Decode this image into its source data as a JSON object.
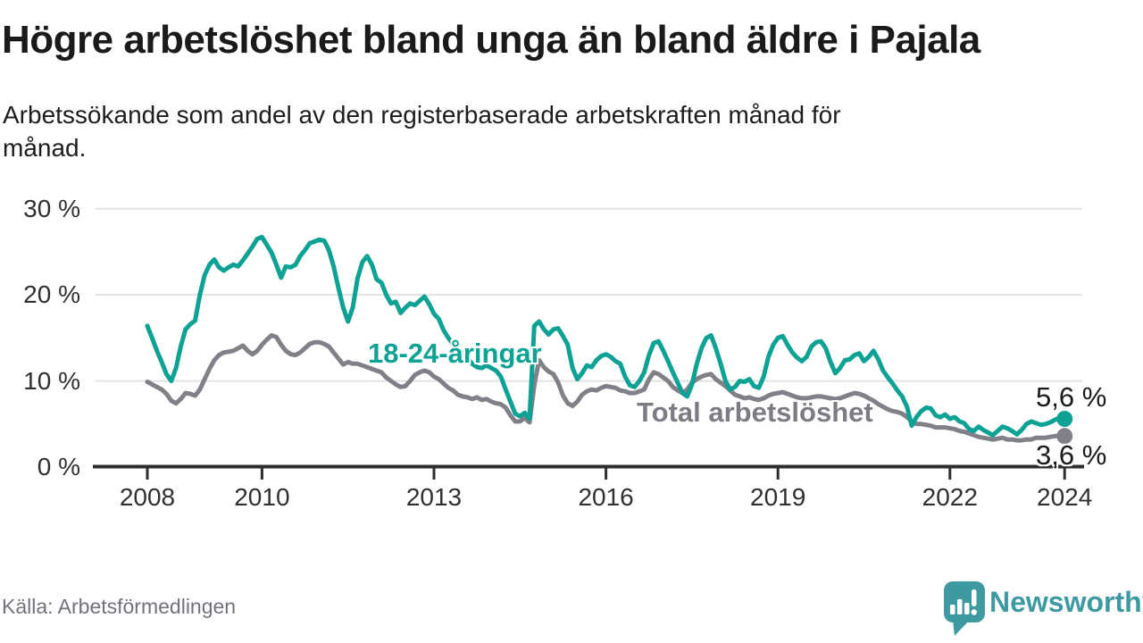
{
  "header": {
    "title": "Högre arbetslöshet bland unga än bland äldre i Pajala",
    "subtitle_line1": "Arbetssökande som andel av den registerbaserade arbetskraften månad för",
    "subtitle_line2": "månad."
  },
  "footer": {
    "source": "Källa: Arbetsförmedlingen",
    "brand": "Newsworthy",
    "brand_color": "#3e9aa0"
  },
  "chart_data": {
    "type": "line",
    "title": "Högre arbetslöshet bland unga än bland äldre i Pajala",
    "unit": "%",
    "frequency": "monthly",
    "x_start_year": 2008,
    "x_end_year": 2024,
    "ylim": [
      0,
      30
    ],
    "grid": true,
    "legend": "inline-labels",
    "y_axis": {
      "ticks": [
        {
          "value": 0,
          "label": "0 %"
        },
        {
          "value": 10,
          "label": "10 %"
        },
        {
          "value": 20,
          "label": "20 %"
        },
        {
          "value": 30,
          "label": "30 %"
        }
      ]
    },
    "x_axis": {
      "ticks": [
        2008,
        2010,
        2013,
        2016,
        2019,
        2022,
        2024
      ]
    },
    "series": [
      {
        "name": "18-24-åringar",
        "color": "#0da294",
        "end_label": "5,6 %",
        "end_value": 5.6,
        "values": [
          16.4,
          15.0,
          13.5,
          12.2,
          10.8,
          10.0,
          11.5,
          14.0,
          16.0,
          16.6,
          17.0,
          20.0,
          22.3,
          23.5,
          24.1,
          23.2,
          22.8,
          23.2,
          23.5,
          23.3,
          24.0,
          24.8,
          25.6,
          26.5,
          26.7,
          25.8,
          24.9,
          23.5,
          22.0,
          23.3,
          23.2,
          23.5,
          24.5,
          25.2,
          26.0,
          26.2,
          26.4,
          26.3,
          25.2,
          23.3,
          20.8,
          18.5,
          16.9,
          18.5,
          21.9,
          23.8,
          24.5,
          23.5,
          21.8,
          21.4,
          20.0,
          19.0,
          19.2,
          17.9,
          18.5,
          19.0,
          18.8,
          19.3,
          19.8,
          18.9,
          17.8,
          17.2,
          15.9,
          15.0,
          14.3,
          13.8,
          13.2,
          12.6,
          12.0,
          11.6,
          11.5,
          11.8,
          11.5,
          11.2,
          10.5,
          9.0,
          7.6,
          6.2,
          5.9,
          6.3,
          5.6,
          16.4,
          16.9,
          16.0,
          15.4,
          16.0,
          16.1,
          15.2,
          14.2,
          11.5,
          10.2,
          10.9,
          11.8,
          11.6,
          12.4,
          12.9,
          13.1,
          12.8,
          12.3,
          12.0,
          10.5,
          9.5,
          9.3,
          10.0,
          11.0,
          13.0,
          14.4,
          14.6,
          13.5,
          12.3,
          11.0,
          9.8,
          8.6,
          8.2,
          9.6,
          12.0,
          13.8,
          15.0,
          15.3,
          13.8,
          12.0,
          10.0,
          9.0,
          9.3,
          10.0,
          9.9,
          10.2,
          9.4,
          9.2,
          10.5,
          12.8,
          14.2,
          15.0,
          15.2,
          14.2,
          13.3,
          12.7,
          12.3,
          12.8,
          14.0,
          14.5,
          14.6,
          13.8,
          12.2,
          10.9,
          11.5,
          12.4,
          12.5,
          13.0,
          13.2,
          12.3,
          12.8,
          13.5,
          12.5,
          11.2,
          10.4,
          9.7,
          8.9,
          8.2,
          7.0,
          4.8,
          5.8,
          6.5,
          6.9,
          6.8,
          6.0,
          5.8,
          6.1,
          5.6,
          5.8,
          5.3,
          5.1,
          4.4,
          4.2,
          4.7,
          4.3,
          4.0,
          3.7,
          4.2,
          4.7,
          4.5,
          4.2,
          3.8,
          4.3,
          5.0,
          5.3,
          5.1,
          4.9,
          5.0,
          5.2,
          5.5,
          5.7,
          5.6
        ]
      },
      {
        "name": "Total arbetslöshet",
        "color": "#808088",
        "end_label": "3,6 %",
        "end_value": 3.6,
        "values": [
          9.9,
          9.6,
          9.3,
          9.0,
          8.5,
          7.7,
          7.4,
          7.9,
          8.6,
          8.5,
          8.3,
          9.0,
          10.2,
          11.4,
          12.4,
          13.0,
          13.3,
          13.4,
          13.5,
          13.8,
          14.1,
          13.5,
          13.1,
          13.5,
          14.2,
          14.8,
          15.3,
          15.1,
          14.2,
          13.5,
          13.1,
          13.0,
          13.3,
          13.8,
          14.3,
          14.5,
          14.5,
          14.3,
          14.0,
          13.3,
          12.6,
          11.9,
          12.2,
          12.0,
          12.0,
          11.8,
          11.6,
          11.4,
          11.2,
          11.0,
          10.4,
          10.0,
          9.6,
          9.3,
          9.4,
          10.0,
          10.7,
          11.0,
          11.2,
          11.0,
          10.5,
          10.2,
          9.7,
          9.2,
          8.9,
          8.4,
          8.2,
          8.1,
          7.9,
          8.1,
          7.8,
          7.9,
          7.6,
          7.4,
          7.3,
          6.9,
          6.0,
          5.3,
          5.3,
          5.7,
          5.2,
          9.5,
          12.4,
          11.6,
          11.1,
          10.8,
          9.8,
          8.3,
          7.4,
          7.1,
          7.6,
          8.4,
          8.8,
          9.0,
          8.9,
          9.2,
          9.4,
          9.3,
          9.2,
          8.9,
          8.8,
          8.6,
          8.6,
          8.8,
          9.0,
          10.2,
          11.0,
          10.8,
          10.4,
          10.0,
          9.3,
          8.9,
          8.6,
          9.0,
          9.8,
          10.2,
          10.5,
          10.7,
          10.8,
          10.2,
          9.8,
          9.4,
          8.9,
          8.4,
          8.2,
          8.0,
          8.1,
          7.9,
          7.8,
          8.0,
          8.3,
          8.5,
          8.6,
          8.7,
          8.5,
          8.3,
          8.1,
          8.0,
          8.0,
          8.1,
          8.2,
          8.2,
          8.1,
          8.0,
          7.9,
          8.0,
          8.2,
          8.4,
          8.6,
          8.5,
          8.3,
          8.0,
          7.7,
          7.3,
          7.0,
          6.7,
          6.5,
          6.4,
          6.2,
          5.8,
          5.3,
          5.0,
          5.0,
          4.9,
          4.8,
          4.6,
          4.6,
          4.6,
          4.5,
          4.4,
          4.2,
          4.1,
          3.9,
          3.7,
          3.5,
          3.4,
          3.3,
          3.2,
          3.3,
          3.4,
          3.2,
          3.2,
          3.1,
          3.1,
          3.2,
          3.2,
          3.4,
          3.4,
          3.4,
          3.5,
          3.6,
          3.6,
          3.6
        ]
      }
    ]
  }
}
